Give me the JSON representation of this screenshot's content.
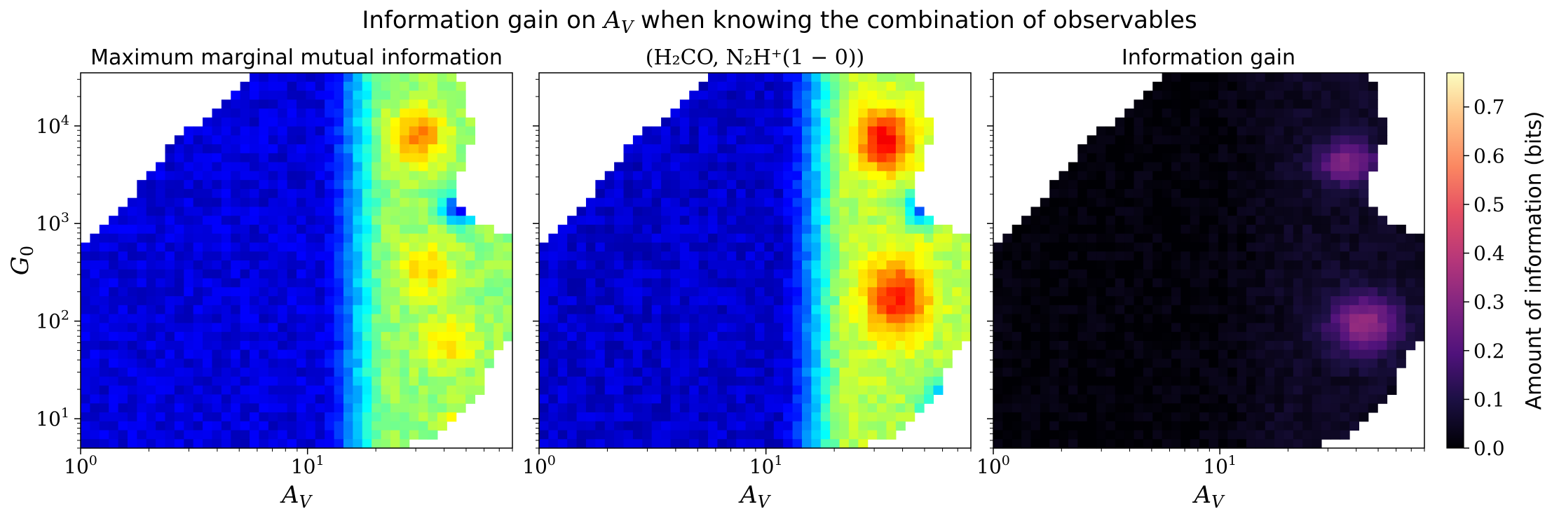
{
  "figure_title": {
    "prefix": "Information gain on ",
    "var": "A",
    "var_sub": "V",
    "suffix": " when knowing the combination of observables"
  },
  "chart_data": [
    {
      "type": "heatmap",
      "title": "Maximum marginal mutual information",
      "xlabel": "A_V",
      "ylabel": "G_0",
      "xscale": "log",
      "yscale": "log",
      "xlim": [
        1,
        80
      ],
      "ylim": [
        5,
        35000
      ],
      "xticks": [
        1,
        10
      ],
      "yticks": [
        10,
        100,
        1000,
        10000
      ],
      "colormap": "jet",
      "description_of_field": "low (~0.05 bits) for A_V < 15, rising to ~0.45 bits at A_V 20-40; local maxima near G_0 ~ 1e4 and ~5e2; low pocket near A_V ~ 45, G_0 ~ 1.5e3"
    },
    {
      "type": "heatmap",
      "title": "(H₂CO, N₂H⁺(1 − 0))",
      "xlabel": "A_V",
      "ylabel": "",
      "xscale": "log",
      "yscale": "log",
      "xlim": [
        1,
        80
      ],
      "ylim": [
        5,
        35000
      ],
      "xticks": [
        1,
        10
      ],
      "yticks": [
        10,
        100,
        1000,
        10000
      ],
      "colormap": "jet",
      "description_of_field": "low for A_V < 15, high (~0.55-0.6 bits) for A_V 25-50; maxima near G_0 ~ 1e4 and ~1.5e2"
    },
    {
      "type": "heatmap",
      "title": "Information gain",
      "xlabel": "A_V",
      "ylabel": "",
      "xscale": "log",
      "yscale": "log",
      "xlim": [
        1,
        80
      ],
      "ylim": [
        5,
        35000
      ],
      "xticks": [
        1,
        10
      ],
      "yticks": [
        10,
        100,
        1000,
        10000
      ],
      "colormap": "magma",
      "colorbar": {
        "label": "Amount of information (bits)",
        "range": [
          0.0,
          0.77
        ],
        "ticks": [
          0.0,
          0.1,
          0.2,
          0.3,
          0.4,
          0.5,
          0.6,
          0.7
        ]
      },
      "description_of_field": "near 0 for A_V < 15; ~0.25-0.3 bits for A_V 25-60 with blobs at G_0 ~ 6e3 and ~2e2"
    }
  ],
  "axis_text": {
    "x_var": "A",
    "x_sub": "V",
    "y_var": "G",
    "y_sub": "0",
    "tick_base": "10",
    "x_tick_exps": [
      "0",
      "1"
    ],
    "y_tick_exps": [
      "1",
      "2",
      "3",
      "4"
    ],
    "colorbar_ticks": [
      "0.0",
      "0.1",
      "0.2",
      "0.3",
      "0.4",
      "0.5",
      "0.6",
      "0.7"
    ],
    "colorbar_label": "Amount of information (bits)"
  }
}
